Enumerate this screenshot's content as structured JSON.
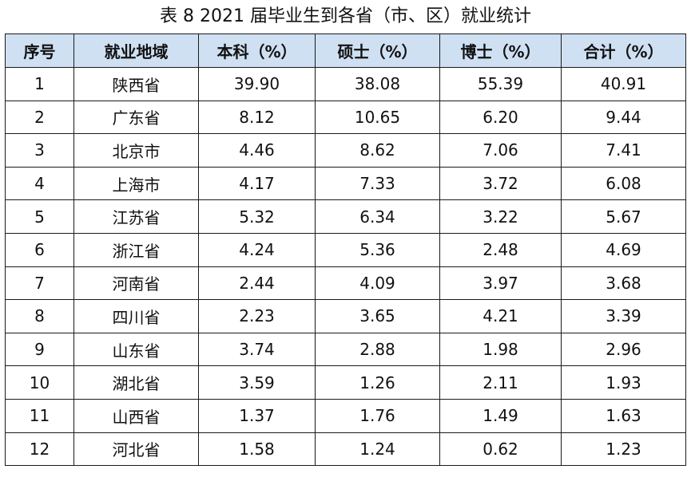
{
  "title": "表 8   2021 届毕业生到各省（市、区）就业统计",
  "headers": [
    "序号",
    "就业地域",
    "本科（%）",
    "硕士（%）",
    "博士（%）",
    "合计（%）"
  ],
  "rows": [
    [
      "1",
      "陕西省",
      "39.90",
      "38.08",
      "55.39",
      "40.91"
    ],
    [
      "2",
      "广东省",
      "8.12",
      "10.65",
      "6.20",
      "9.44"
    ],
    [
      "3",
      "北京市",
      "4.46",
      "8.62",
      "7.06",
      "7.41"
    ],
    [
      "4",
      "上海市",
      "4.17",
      "7.33",
      "3.72",
      "6.08"
    ],
    [
      "5",
      "江苏省",
      "5.32",
      "6.34",
      "3.22",
      "5.67"
    ],
    [
      "6",
      "浙江省",
      "4.24",
      "5.36",
      "2.48",
      "4.69"
    ],
    [
      "7",
      "河南省",
      "2.44",
      "4.09",
      "3.97",
      "3.68"
    ],
    [
      "8",
      "四川省",
      "2.23",
      "3.65",
      "4.21",
      "3.39"
    ],
    [
      "9",
      "山东省",
      "3.74",
      "2.88",
      "1.98",
      "2.96"
    ],
    [
      "10",
      "湖北省",
      "3.59",
      "1.26",
      "2.11",
      "1.93"
    ],
    [
      "11",
      "山西省",
      "1.37",
      "1.76",
      "1.49",
      "1.63"
    ],
    [
      "12",
      "河北省",
      "1.58",
      "1.24",
      "0.62",
      "1.23"
    ]
  ]
}
